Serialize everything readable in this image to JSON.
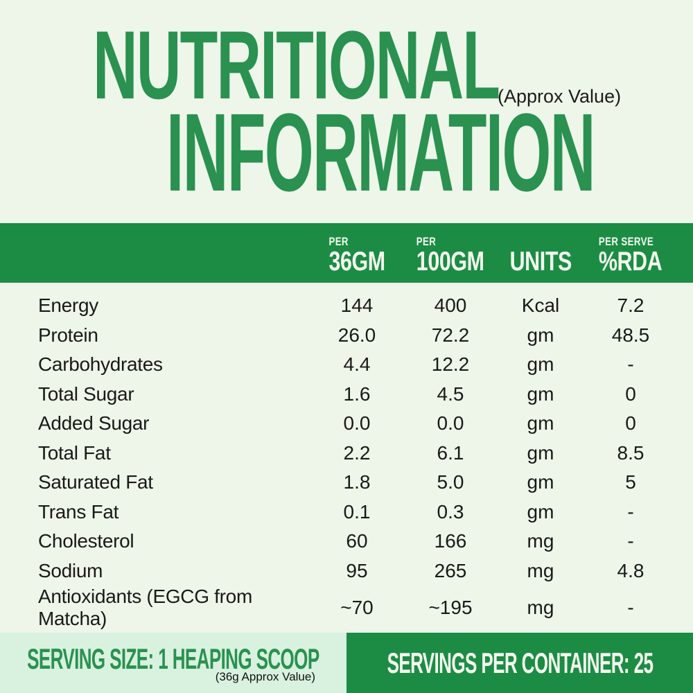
{
  "title": {
    "line1": "NUTRITIONAL",
    "line2": "INFORMATION",
    "approx_note": "(Approx Value)"
  },
  "table": {
    "header": {
      "columns": [
        {
          "sub": "PER",
          "main": "36GM"
        },
        {
          "sub": "PER",
          "main": "100GM"
        },
        {
          "main": "UNITS"
        },
        {
          "sub": "PER SERVE",
          "main": "%RDA"
        }
      ]
    },
    "rows": [
      {
        "label": "Energy",
        "per_36gm": "144",
        "per_100gm": "400",
        "units": "Kcal",
        "per_serve_rda": "7.2"
      },
      {
        "label": "Protein",
        "per_36gm": "26.0",
        "per_100gm": "72.2",
        "units": "gm",
        "per_serve_rda": "48.5"
      },
      {
        "label": "Carbohydrates",
        "per_36gm": "4.4",
        "per_100gm": "12.2",
        "units": "gm",
        "per_serve_rda": "-"
      },
      {
        "label": "Total Sugar",
        "per_36gm": "1.6",
        "per_100gm": "4.5",
        "units": "gm",
        "per_serve_rda": "0"
      },
      {
        "label": "Added Sugar",
        "per_36gm": "0.0",
        "per_100gm": "0.0",
        "units": "gm",
        "per_serve_rda": "0"
      },
      {
        "label": "Total Fat",
        "per_36gm": "2.2",
        "per_100gm": "6.1",
        "units": "gm",
        "per_serve_rda": "8.5"
      },
      {
        "label": "Saturated Fat",
        "per_36gm": "1.8",
        "per_100gm": "5.0",
        "units": "gm",
        "per_serve_rda": "5"
      },
      {
        "label": "Trans Fat",
        "per_36gm": "0.1",
        "per_100gm": "0.3",
        "units": "gm",
        "per_serve_rda": "-"
      },
      {
        "label": "Cholesterol",
        "per_36gm": "60",
        "per_100gm": "166",
        "units": "mg",
        "per_serve_rda": "-"
      },
      {
        "label": "Sodium",
        "per_36gm": "95",
        "per_100gm": "265",
        "units": "mg",
        "per_serve_rda": "4.8"
      },
      {
        "label": "Antioxidants (EGCG from Matcha)",
        "per_36gm": "~70",
        "per_100gm": "~195",
        "units": "mg",
        "per_serve_rda": "-"
      }
    ]
  },
  "footer": {
    "serving_size": "SERVING SIZE: 1 HEAPING SCOOP",
    "serving_size_note": "(36g Approx Value)",
    "servings_per_container": "SERVINGS PER CONTAINER: 25"
  },
  "colors": {
    "background": "#edf6e9",
    "title_green": "#2a9150",
    "bar_green": "#1c8c45",
    "footer_light_green": "#d8f2df",
    "header_text": "#f4faee",
    "body_text": "#191919"
  }
}
